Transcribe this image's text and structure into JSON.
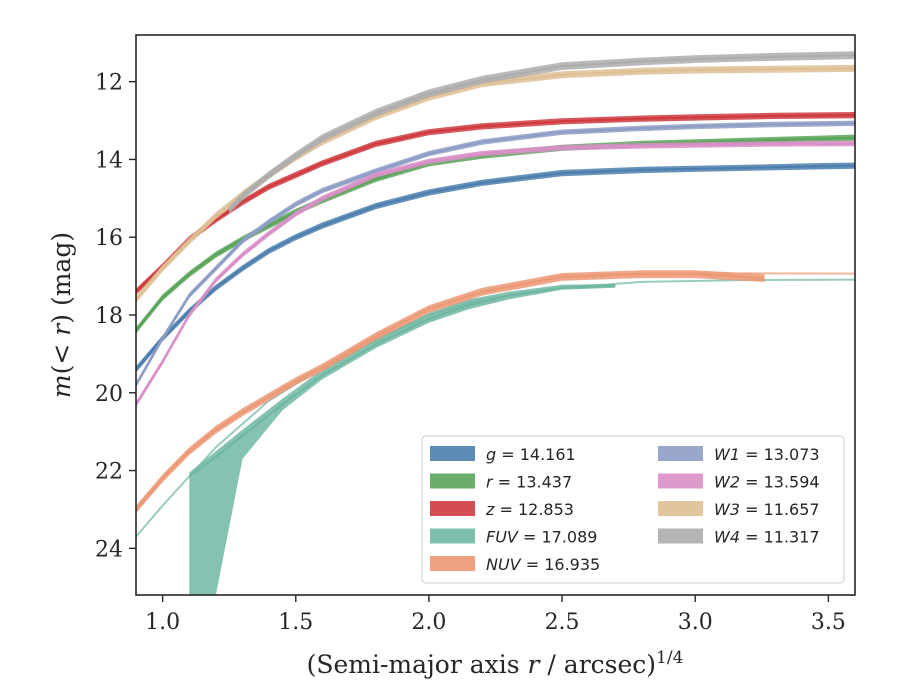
{
  "chart_data": {
    "type": "line",
    "title": "",
    "xlabel": "(Semi-major axis r / arcsec)^1/4",
    "ylabel": "m(< r) (mag)",
    "xlim": [
      0.9,
      3.6
    ],
    "ylim": [
      25.2,
      10.8
    ],
    "y_inverted": true,
    "x_ticks": [
      "1.0",
      "1.5",
      "2.0",
      "2.5",
      "3.0",
      "3.5"
    ],
    "y_ticks": [
      "12",
      "14",
      "16",
      "18",
      "20",
      "22",
      "24"
    ],
    "grid": false,
    "legend_position": "lower-right",
    "series": [
      {
        "label": "g = 14.161",
        "color": "#4c7fae",
        "x": [
          0.9,
          1.0,
          1.1,
          1.2,
          1.3,
          1.4,
          1.5,
          1.6,
          1.8,
          2.0,
          2.2,
          2.5,
          2.8,
          3.0,
          3.3,
          3.5,
          3.6
        ],
        "y": [
          19.4,
          18.6,
          17.9,
          17.3,
          16.8,
          16.35,
          16.0,
          15.7,
          15.2,
          14.85,
          14.6,
          14.35,
          14.27,
          14.24,
          14.2,
          14.17,
          14.16
        ],
        "band": 0.08
      },
      {
        "label": "r = 13.437",
        "color": "#5aa55a",
        "x": [
          0.9,
          1.0,
          1.1,
          1.2,
          1.3,
          1.4,
          1.5,
          1.6,
          1.8,
          2.0,
          2.2,
          2.5,
          2.8,
          3.0,
          3.3,
          3.6
        ],
        "y": [
          18.4,
          17.55,
          16.95,
          16.45,
          16.05,
          15.7,
          15.35,
          15.05,
          14.5,
          14.1,
          13.9,
          13.7,
          13.6,
          13.56,
          13.5,
          13.44
        ],
        "band": 0.08
      },
      {
        "label": "z = 12.853",
        "color": "#cf3a3f",
        "x": [
          0.9,
          1.0,
          1.1,
          1.2,
          1.3,
          1.4,
          1.5,
          1.6,
          1.8,
          2.0,
          2.2,
          2.5,
          2.8,
          3.0,
          3.3,
          3.6
        ],
        "y": [
          17.4,
          16.75,
          16.05,
          15.55,
          15.1,
          14.7,
          14.4,
          14.1,
          13.6,
          13.3,
          13.15,
          13.02,
          12.95,
          12.92,
          12.88,
          12.86
        ],
        "band": 0.08
      },
      {
        "label": "FUV = 17.089",
        "color": "#6fb7a3",
        "x": [
          1.1,
          1.2,
          1.3,
          1.45,
          1.6,
          1.8,
          2.0,
          2.15,
          2.3,
          2.5,
          2.7
        ],
        "y": [
          22.15,
          21.65,
          21.1,
          20.3,
          19.55,
          18.75,
          18.1,
          17.75,
          17.5,
          17.3,
          17.25
        ],
        "band_lower": [
          25.2,
          25.2,
          21.7,
          20.45,
          19.65,
          18.85,
          18.2,
          17.85,
          17.6,
          17.35,
          17.3
        ],
        "band_upper": [
          22.05,
          21.5,
          20.95,
          20.15,
          19.4,
          18.6,
          17.95,
          17.6,
          17.4,
          17.22,
          17.2
        ],
        "extension": {
          "x": [
            0.9,
            1.0,
            1.2,
            1.4,
            1.6,
            1.8,
            2.0,
            2.2,
            2.5,
            2.8,
            3.2,
            3.6
          ],
          "y": [
            23.7,
            22.9,
            21.4,
            20.2,
            19.35,
            18.65,
            18.0,
            17.6,
            17.3,
            17.15,
            17.1,
            17.09
          ]
        }
      },
      {
        "label": "NUV = 16.935",
        "color": "#ec9874",
        "x": [
          0.9,
          1.0,
          1.1,
          1.2,
          1.3,
          1.4,
          1.5,
          1.6,
          1.8,
          2.0,
          2.2,
          2.5,
          2.8,
          3.0,
          3.26
        ],
        "y": [
          23.0,
          22.2,
          21.5,
          20.95,
          20.5,
          20.1,
          19.7,
          19.35,
          18.55,
          17.85,
          17.4,
          17.02,
          16.95,
          16.95,
          17.05
        ],
        "band": 0.1,
        "extension": {
          "x": [
            2.6,
            3.0,
            3.3,
            3.6
          ],
          "y": [
            16.95,
            16.93,
            16.93,
            16.935
          ]
        }
      },
      {
        "label": "W1 = 13.073",
        "color": "#8e9dc6",
        "x": [
          0.9,
          1.0,
          1.1,
          1.2,
          1.3,
          1.4,
          1.5,
          1.6,
          1.8,
          2.0,
          2.2,
          2.5,
          2.8,
          3.0,
          3.3,
          3.6
        ],
        "y": [
          19.8,
          18.6,
          17.5,
          16.8,
          16.1,
          15.6,
          15.15,
          14.8,
          14.3,
          13.85,
          13.55,
          13.3,
          13.2,
          13.15,
          13.1,
          13.07
        ],
        "band": 0.07
      },
      {
        "label": "W2 = 13.594",
        "color": "#d98fc7",
        "x": [
          0.9,
          1.0,
          1.1,
          1.2,
          1.3,
          1.4,
          1.5,
          1.6,
          1.8,
          2.0,
          2.2,
          2.5,
          2.8,
          3.0,
          3.3,
          3.6
        ],
        "y": [
          20.3,
          19.2,
          18.0,
          17.1,
          16.45,
          15.9,
          15.4,
          15.0,
          14.4,
          14.05,
          13.85,
          13.7,
          13.65,
          13.63,
          13.6,
          13.59
        ],
        "band": 0.07
      },
      {
        "label": "W3 = 11.657",
        "color": "#dfbf95",
        "x": [
          0.9,
          1.0,
          1.1,
          1.2,
          1.3,
          1.4,
          1.5,
          1.6,
          1.8,
          2.0,
          2.2,
          2.5,
          2.8,
          3.0,
          3.3,
          3.6
        ],
        "y": [
          17.6,
          16.8,
          16.1,
          15.45,
          14.9,
          14.4,
          13.95,
          13.55,
          12.9,
          12.4,
          12.05,
          11.82,
          11.73,
          11.7,
          11.68,
          11.66
        ],
        "band": 0.09
      },
      {
        "label": "W4 = 11.317",
        "color": "#adadad",
        "x": [
          1.25,
          1.3,
          1.4,
          1.5,
          1.6,
          1.8,
          2.0,
          2.2,
          2.5,
          2.8,
          3.0,
          3.3,
          3.6
        ],
        "y": [
          15.3,
          14.95,
          14.4,
          13.9,
          13.45,
          12.8,
          12.3,
          11.95,
          11.6,
          11.48,
          11.42,
          11.36,
          11.32
        ],
        "band": 0.1
      }
    ]
  }
}
